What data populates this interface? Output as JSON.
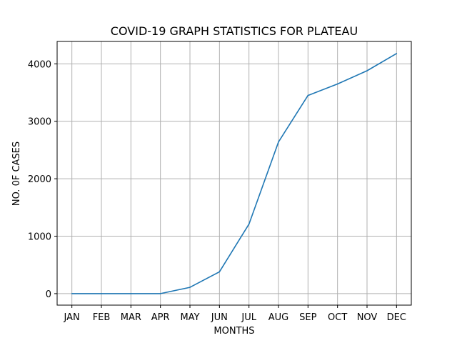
{
  "chart_data": {
    "type": "line",
    "title": "COVID-19 GRAPH STATISTICS FOR PLATEAU",
    "xlabel": "MONTHS",
    "ylabel": "NO. 0F CASES",
    "categories": [
      "JAN",
      "FEB",
      "MAR",
      "APR",
      "MAY",
      "JUN",
      "JUL",
      "AUG",
      "SEP",
      "OCT",
      "NOV",
      "DEC"
    ],
    "series": [
      {
        "values": [
          0,
          0,
          0,
          0,
          110,
          380,
          1210,
          2640,
          3450,
          3650,
          3880,
          4180
        ],
        "color": "#1f77b4"
      }
    ],
    "ylim": [
      -200,
      4390
    ],
    "yticks": [
      0,
      1000,
      2000,
      3000,
      4000
    ],
    "grid": true
  }
}
